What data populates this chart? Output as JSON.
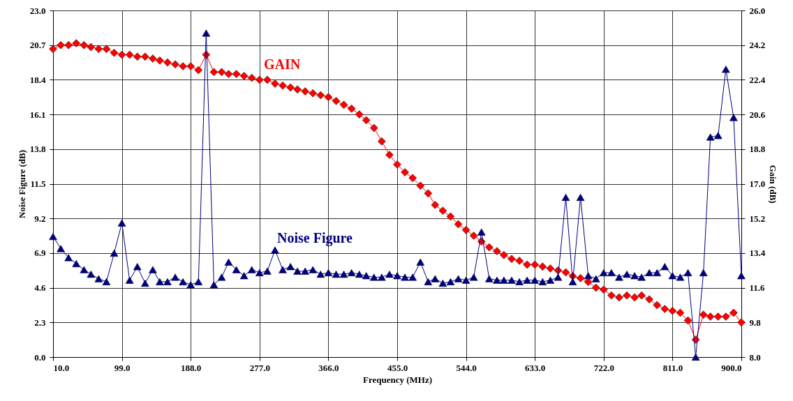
{
  "chart_data": {
    "type": "line",
    "xlabel": "Frequency    (MHz)",
    "ylabel": "Noise Figure (dB)",
    "y2label": "Gain (dB)",
    "x": [
      10,
      20,
      30,
      40,
      50,
      59,
      69,
      79,
      89,
      99,
      109,
      119,
      129,
      139,
      148,
      158,
      168,
      178,
      188,
      198,
      208,
      218,
      228,
      237,
      247,
      257,
      267,
      277,
      287,
      297,
      307,
      317,
      326,
      336,
      346,
      356,
      366,
      376,
      386,
      396,
      406,
      415,
      425,
      435,
      445,
      455,
      465,
      475,
      485,
      495,
      504,
      514,
      524,
      534,
      544,
      554,
      564,
      574,
      584,
      593,
      603,
      613,
      623,
      633,
      643,
      653,
      663,
      673,
      682,
      692,
      702,
      712,
      722,
      732,
      742,
      752,
      762,
      771,
      781,
      791,
      801,
      811,
      821,
      831,
      841,
      851,
      860,
      870,
      880,
      890,
      900
    ],
    "xlim": [
      10,
      900
    ],
    "xticks": [
      {
        "value": 10,
        "label": "10.0"
      },
      {
        "value": 99,
        "label": "99.0"
      },
      {
        "value": 188,
        "label": "188.0"
      },
      {
        "value": 277,
        "label": "277.0"
      },
      {
        "value": 366,
        "label": "366.0"
      },
      {
        "value": 455,
        "label": "455.0"
      },
      {
        "value": 544,
        "label": "544.0"
      },
      {
        "value": 633,
        "label": "633.0"
      },
      {
        "value": 722,
        "label": "722.0"
      },
      {
        "value": 811,
        "label": "811.0"
      },
      {
        "value": 900,
        "label": "900.0"
      }
    ],
    "ylim": [
      0,
      23
    ],
    "yticks": [
      {
        "value": 0,
        "label": "0.0"
      },
      2.3,
      {
        "value": 4.6,
        "label": "4.6"
      },
      6.9,
      9.2,
      11.5,
      13.8,
      16.1,
      18.4,
      20.7,
      {
        "value": 23,
        "label": "23.0"
      }
    ],
    "y2lim": [
      8,
      26
    ],
    "y2ticks": [
      {
        "value": 8,
        "label": "8.0"
      },
      9.8,
      11.6,
      13.4,
      15.2,
      {
        "value": 17,
        "label": "17.0"
      },
      18.8,
      20.6,
      22.4,
      24.2,
      {
        "value": 26,
        "label": "26.0"
      }
    ],
    "grid": true,
    "line_style": "solid",
    "series": [
      {
        "name": "GAIN",
        "color": "#ff0000",
        "axis": "y2",
        "marker": "diamond",
        "values": [
          24.0,
          24.2,
          24.2,
          24.3,
          24.2,
          24.1,
          24.0,
          24.0,
          23.8,
          23.7,
          23.7,
          23.6,
          23.6,
          23.5,
          23.4,
          23.3,
          23.2,
          23.1,
          23.1,
          22.9,
          23.7,
          22.8,
          22.8,
          22.7,
          22.7,
          22.6,
          22.5,
          22.4,
          22.4,
          22.2,
          22.1,
          22.0,
          21.9,
          21.8,
          21.7,
          21.6,
          21.5,
          21.3,
          21.1,
          20.9,
          20.6,
          20.3,
          19.9,
          19.2,
          18.5,
          18.0,
          17.6,
          17.3,
          16.9,
          16.5,
          15.9,
          15.6,
          15.3,
          14.9,
          14.6,
          14.3,
          14.0,
          13.7,
          13.5,
          13.3,
          13.1,
          13.0,
          12.8,
          12.8,
          12.7,
          12.6,
          12.5,
          12.4,
          12.2,
          12.1,
          11.9,
          11.6,
          11.5,
          11.2,
          11.1,
          11.2,
          11.1,
          11.2,
          11.0,
          10.7,
          10.5,
          10.4,
          10.3,
          9.9,
          8.9,
          10.2,
          10.1,
          10.1,
          10.1,
          10.3,
          9.8
        ]
      },
      {
        "name": "Noise Figure",
        "color": "#000080",
        "marker": "triangle",
        "values": [
          8.0,
          7.2,
          6.6,
          6.2,
          5.8,
          5.5,
          5.2,
          5.0,
          6.9,
          8.9,
          5.1,
          6.0,
          4.9,
          5.8,
          5.0,
          5.0,
          5.3,
          5.0,
          4.8,
          5.0,
          21.5,
          4.8,
          5.3,
          6.3,
          5.8,
          5.4,
          5.8,
          5.6,
          5.7,
          7.1,
          5.8,
          6.0,
          5.7,
          5.7,
          5.8,
          5.5,
          5.6,
          5.5,
          5.5,
          5.6,
          5.5,
          5.4,
          5.3,
          5.3,
          5.5,
          5.4,
          5.3,
          5.3,
          6.3,
          5.0,
          5.2,
          4.9,
          5.0,
          5.2,
          5.1,
          5.3,
          8.3,
          5.2,
          5.1,
          5.1,
          5.1,
          5.0,
          5.1,
          5.1,
          5.0,
          5.1,
          5.3,
          10.6,
          5.0,
          10.6,
          5.4,
          5.2,
          5.6,
          5.6,
          5.3,
          5.5,
          5.4,
          5.3,
          5.6,
          5.6,
          6.0,
          5.4,
          5.3,
          5.6,
          0.0,
          5.6,
          14.6,
          14.7,
          19.1,
          15.9,
          5.4
        ]
      }
    ]
  }
}
